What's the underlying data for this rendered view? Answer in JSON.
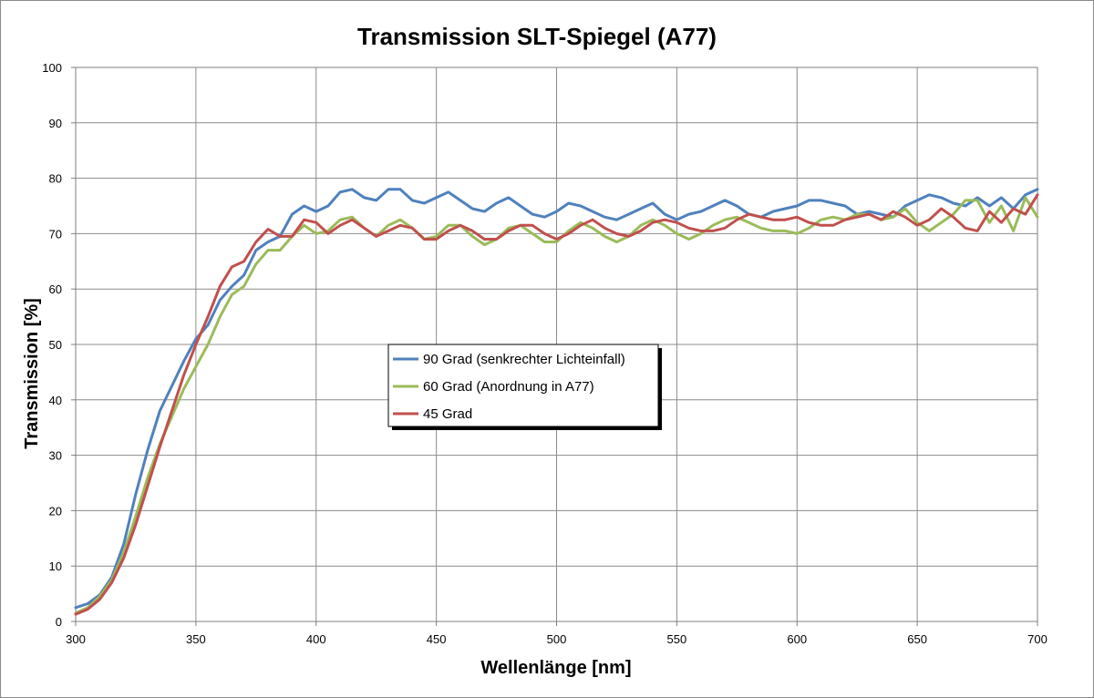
{
  "chart_data": {
    "type": "line",
    "title": "Transmission SLT-Spiegel (A77)",
    "xlabel": "Wellenlänge [nm]",
    "ylabel": "Transmission [%]",
    "xlim": [
      300,
      700
    ],
    "ylim": [
      0,
      100
    ],
    "x_ticks": [
      300,
      350,
      400,
      450,
      500,
      550,
      600,
      650,
      700
    ],
    "y_ticks": [
      0,
      10,
      20,
      30,
      40,
      50,
      60,
      70,
      80,
      90,
      100
    ],
    "grid": true,
    "legend_position": "center",
    "series": [
      {
        "name": "90 Grad (senkrechter Lichteinfall)",
        "color": "#4F81BD",
        "x": [
          300,
          305,
          310,
          315,
          320,
          325,
          330,
          335,
          340,
          345,
          350,
          355,
          360,
          365,
          370,
          375,
          380,
          385,
          390,
          395,
          400,
          405,
          410,
          415,
          420,
          425,
          430,
          435,
          440,
          445,
          450,
          455,
          460,
          465,
          470,
          475,
          480,
          485,
          490,
          495,
          500,
          505,
          510,
          515,
          520,
          525,
          530,
          535,
          540,
          545,
          550,
          555,
          560,
          565,
          570,
          575,
          580,
          585,
          590,
          595,
          600,
          605,
          610,
          615,
          620,
          625,
          630,
          635,
          640,
          645,
          650,
          655,
          660,
          665,
          670,
          675,
          680,
          685,
          690,
          695,
          700
        ],
        "y": [
          2.5,
          3.2,
          4.8,
          8.0,
          14.0,
          23.0,
          31.0,
          38.0,
          42.5,
          47.0,
          51.0,
          53.5,
          58.0,
          60.5,
          62.5,
          67.0,
          68.5,
          69.5,
          73.5,
          75.0,
          74.0,
          75.0,
          77.5,
          78.0,
          76.5,
          76.0,
          78.0,
          78.0,
          76.0,
          75.5,
          76.5,
          77.5,
          76.0,
          74.5,
          74.0,
          75.5,
          76.5,
          75.0,
          73.5,
          73.0,
          74.0,
          75.5,
          75.0,
          74.0,
          73.0,
          72.5,
          73.5,
          74.5,
          75.5,
          73.5,
          72.5,
          73.5,
          74.0,
          75.0,
          76.0,
          75.0,
          73.5,
          73.0,
          74.0,
          74.5,
          75.0,
          76.0,
          76.0,
          75.5,
          75.0,
          73.5,
          74.0,
          73.5,
          73.0,
          75.0,
          76.0,
          77.0,
          76.5,
          75.5,
          75.0,
          76.5,
          75.0,
          76.5,
          74.5,
          77.0,
          78.0
        ]
      },
      {
        "name": "60 Grad (Anordnung in A77)",
        "color": "#9BBB59",
        "x": [
          300,
          305,
          310,
          315,
          320,
          325,
          330,
          335,
          340,
          345,
          350,
          355,
          360,
          365,
          370,
          375,
          380,
          385,
          390,
          395,
          400,
          405,
          410,
          415,
          420,
          425,
          430,
          435,
          440,
          445,
          450,
          455,
          460,
          465,
          470,
          475,
          480,
          485,
          490,
          495,
          500,
          505,
          510,
          515,
          520,
          525,
          530,
          535,
          540,
          545,
          550,
          555,
          560,
          565,
          570,
          575,
          580,
          585,
          590,
          595,
          600,
          605,
          610,
          615,
          620,
          625,
          630,
          635,
          640,
          645,
          650,
          655,
          660,
          665,
          670,
          675,
          680,
          685,
          690,
          695,
          700
        ],
        "y": [
          1.5,
          2.5,
          4.5,
          7.5,
          12.5,
          19.0,
          26.0,
          32.0,
          37.0,
          42.0,
          46.0,
          50.0,
          55.0,
          59.0,
          60.5,
          64.5,
          67.0,
          67.0,
          69.5,
          71.5,
          70.0,
          70.5,
          72.5,
          73.0,
          71.0,
          69.5,
          71.5,
          72.5,
          71.0,
          69.0,
          69.5,
          71.5,
          71.5,
          69.5,
          68.0,
          69.0,
          71.0,
          71.5,
          70.0,
          68.5,
          68.5,
          70.5,
          72.0,
          71.0,
          69.5,
          68.5,
          69.5,
          71.5,
          72.5,
          71.5,
          70.0,
          69.0,
          70.0,
          71.5,
          72.5,
          73.0,
          72.0,
          71.0,
          70.5,
          70.5,
          70.0,
          71.0,
          72.5,
          73.0,
          72.5,
          73.5,
          73.5,
          72.5,
          73.0,
          74.5,
          72.0,
          70.5,
          72.0,
          73.5,
          76.0,
          76.0,
          72.0,
          75.0,
          70.5,
          76.5,
          73.0
        ]
      },
      {
        "name": "45 Grad",
        "color": "#C0504D",
        "x": [
          300,
          305,
          310,
          315,
          320,
          325,
          330,
          335,
          340,
          345,
          350,
          355,
          360,
          365,
          370,
          375,
          380,
          385,
          390,
          395,
          400,
          405,
          410,
          415,
          420,
          425,
          430,
          435,
          440,
          445,
          450,
          455,
          460,
          465,
          470,
          475,
          480,
          485,
          490,
          495,
          500,
          505,
          510,
          515,
          520,
          525,
          530,
          535,
          540,
          545,
          550,
          555,
          560,
          565,
          570,
          575,
          580,
          585,
          590,
          595,
          600,
          605,
          610,
          615,
          620,
          625,
          630,
          635,
          640,
          645,
          650,
          655,
          660,
          665,
          670,
          675,
          680,
          685,
          690,
          695,
          700
        ],
        "y": [
          1.3,
          2.2,
          4.0,
          7.0,
          11.5,
          17.5,
          24.5,
          31.5,
          38.0,
          44.5,
          50.0,
          55.0,
          60.5,
          64.0,
          65.0,
          68.5,
          70.8,
          69.5,
          69.5,
          72.5,
          72.0,
          70.0,
          71.5,
          72.5,
          71.0,
          69.5,
          70.5,
          71.5,
          71.0,
          69.0,
          69.0,
          70.5,
          71.5,
          70.5,
          69.0,
          69.0,
          70.5,
          71.5,
          71.5,
          70.0,
          69.0,
          70.0,
          71.5,
          72.5,
          71.0,
          70.0,
          69.5,
          70.5,
          72.0,
          72.5,
          72.0,
          71.0,
          70.5,
          70.5,
          71.0,
          72.5,
          73.5,
          73.0,
          72.5,
          72.5,
          73.0,
          72.0,
          71.5,
          71.5,
          72.5,
          73.0,
          73.5,
          72.5,
          74.0,
          73.0,
          71.5,
          72.5,
          74.5,
          73.0,
          71.0,
          70.5,
          74.0,
          72.0,
          74.5,
          73.5,
          77.0
        ]
      }
    ]
  }
}
